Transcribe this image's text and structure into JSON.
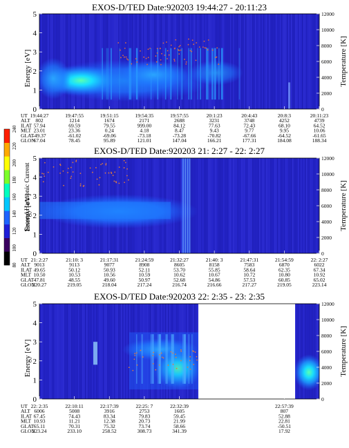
{
  "chart_data": [
    {
      "type": "heatmap",
      "title": "EXOS-D/TED",
      "date_label": "Date:920203",
      "time_range": "19:44:27 - 20:11:23",
      "ylabel": "Energy [eV]",
      "y2label": "Temperature [K]",
      "ylim": [
        0,
        5
      ],
      "y2lim": [
        0,
        12000
      ],
      "yticks": [
        "0",
        "1",
        "2",
        "3",
        "4",
        "5"
      ],
      "y2ticks": [
        "0",
        "2000",
        "4000",
        "6000",
        "8000",
        "10000",
        "12000"
      ],
      "row_labels": [
        "UT",
        "ALT",
        "ILAT",
        "MLT",
        "GLAT",
        "GLON"
      ],
      "columns": [
        {
          "UT": "19:44:27",
          "ALT": "802",
          "ILAT": "57.94",
          "MLT": "23.01",
          "GLAT": "-49.37",
          "GLON": "67.04"
        },
        {
          "UT": "19:47:55",
          "ALT": "1214",
          "ILAT": "69.59",
          "MLT": "23.36",
          "GLAT": "-61.02",
          "GLON": "78.45"
        },
        {
          "UT": "19:51:15",
          "ALT": "1674",
          "ILAT": "79.55",
          "MLT": "0.24",
          "GLAT": "-69.06",
          "GLON": "95.89"
        },
        {
          "UT": "19:54:35",
          "ALT": "2171",
          "ILAT": "999.00",
          "MLT": "4.18",
          "GLAT": "-73.18",
          "GLON": "121.01"
        },
        {
          "UT": "19:57:55",
          "ALT": "2688",
          "ILAT": "84.12",
          "MLT": "8.47",
          "GLAT": "-73.28",
          "GLON": "147.04"
        },
        {
          "UT": "20:1:23",
          "ALT": "3231",
          "ILAT": "77.63",
          "MLT": "9.43",
          "GLAT": "-70.82",
          "GLON": "166.21"
        },
        {
          "UT": "20:4:43",
          "ALT": "3748",
          "ILAT": "72.43",
          "MLT": "9.77",
          "GLAT": "-67.66",
          "GLON": "177.31"
        },
        {
          "UT": "20:8:3",
          "ALT": "4252",
          "ILAT": "68.10",
          "MLT": "9.95",
          "GLAT": "-64.52",
          "GLON": "184.08"
        },
        {
          "UT": "20:11:23",
          "ALT": "4739",
          "ILAT": "64.52",
          "MLT": "10.06",
          "GLAT": "-61.65",
          "GLON": "188.34"
        }
      ]
    },
    {
      "type": "heatmap",
      "title": "EXOS-D/TED",
      "date_label": "Date:920203",
      "time_range": "21: 2:27 - 22: 2:27",
      "ylabel": "Energy [eV]",
      "y2label": "Temperature [K]",
      "ylim": [
        0,
        5
      ],
      "y2lim": [
        0,
        12000
      ],
      "yticks": [
        "0",
        "1",
        "2",
        "3",
        "4",
        "5"
      ],
      "y2ticks": [
        "0",
        "2000",
        "4000",
        "6000",
        "8000",
        "10000",
        "12000"
      ],
      "row_labels": [
        "UT",
        "ALT",
        "ILAT",
        "MLT",
        "GLAT",
        "GLON"
      ],
      "columns": [
        {
          "UT": "21: 2:27",
          "ALT": "9013",
          "ILAT": "49.65",
          "MLT": "10.50",
          "GLAT": "47.81",
          "GLON": "220.27"
        },
        {
          "UT": "21:10: 3",
          "ALT": "9113",
          "ILAT": "50.12",
          "MLT": "10.53",
          "GLAT": "48.55",
          "GLON": "219.05"
        },
        {
          "UT": "21:17:31",
          "ALT": "9077",
          "ILAT": "50.93",
          "MLT": "10.56",
          "GLAT": "49.60",
          "GLON": "218.04"
        },
        {
          "UT": "21:24:59",
          "ALT": "8908",
          "ILAT": "52.11",
          "MLT": "10.59",
          "GLAT": "50.97",
          "GLON": "217.24"
        },
        {
          "UT": "21:32:27",
          "ALT": "8605",
          "ILAT": "53.70",
          "MLT": "10.62",
          "GLAT": "52.68",
          "GLON": "216.74"
        },
        {
          "UT": "21:40: 3",
          "ALT": "8158",
          "ILAT": "55.85",
          "MLT": "10.67",
          "GLAT": "54.86",
          "GLON": "216.66"
        },
        {
          "UT": "21:47:31",
          "ALT": "7583",
          "ILAT": "58.64",
          "MLT": "10.72",
          "GLAT": "57.53",
          "GLON": "217.27"
        },
        {
          "UT": "21:54:59",
          "ALT": "6870",
          "ILAT": "62.35",
          "MLT": "10.80",
          "GLAT": "60.85",
          "GLON": "219.05"
        },
        {
          "UT": "22: 2:27",
          "ALT": "6022",
          "ILAT": "67.34",
          "MLT": "10.92",
          "GLAT": "65.02",
          "GLON": "223.14"
        }
      ]
    },
    {
      "type": "heatmap",
      "title": "EXOS-D/TED",
      "date_label": "Date:920203",
      "time_range": "22: 2:35 - 23: 2:35",
      "ylabel": "Energy [eV]",
      "y2label": "Temperature [K]",
      "ylim": [
        0,
        5
      ],
      "y2lim": [
        0,
        12000
      ],
      "yticks": [
        "0",
        "1",
        "2",
        "3",
        "4",
        "5"
      ],
      "y2ticks": [
        "0",
        "2000",
        "4000",
        "6000",
        "8000",
        "10000",
        "12000"
      ],
      "row_labels": [
        "UT",
        "ALT",
        "ILAT",
        "MLT",
        "GLAT",
        "GLON"
      ],
      "columns": [
        {
          "UT": "22: 2:35",
          "ALT": "6006",
          "ILAT": "67.45",
          "MLT": "10.93",
          "GLAT": "65.11",
          "GLON": "223.24"
        },
        {
          "UT": "22:10:11",
          "ALT": "5008",
          "ILAT": "74.43",
          "MLT": "11.21",
          "GLAT": "70.31",
          "GLON": "233.10"
        },
        {
          "UT": "22:17:39",
          "ALT": "3916",
          "ILAT": "83.34",
          "MLT": "12.38",
          "GLAT": "75.32",
          "GLON": "258.52"
        },
        {
          "UT": "22:25: 7",
          "ALT": "2753",
          "ILAT": "79.83",
          "MLT": "20.73",
          "GLAT": "73.74",
          "GLON": "308.73"
        },
        {
          "UT": "22:32:39",
          "ALT": "1605",
          "ILAT": "59.45",
          "MLT": "21.99",
          "GLAT": "58.66",
          "GLON": "341.39"
        },
        {
          "UT": "",
          "ALT": "",
          "ILAT": "",
          "MLT": "",
          "GLAT": "",
          "GLON": ""
        },
        {
          "UT": "",
          "ALT": "",
          "ILAT": "",
          "MLT": "",
          "GLAT": "",
          "GLON": ""
        },
        {
          "UT": "22:57:39",
          "ALT": "807",
          "ILAT": "52.88",
          "MLT": "22.81",
          "GLAT": "-50.51",
          "GLON": "17.92"
        },
        {
          "UT": "",
          "ALT": "",
          "ILAT": "",
          "MLT": "",
          "GLAT": "",
          "GLON": ""
        }
      ]
    }
  ],
  "colorbar": {
    "label": "Second Harmonic Current",
    "ticks": [
      "80",
      "100",
      "120",
      "140",
      "160",
      "180",
      "200",
      "220",
      "240"
    ],
    "range": [
      80,
      240
    ],
    "colors": [
      "#000000",
      "#3a0060",
      "#1e1ed8",
      "#1e64ff",
      "#00c8ff",
      "#00ffc0",
      "#7cff28",
      "#ffff00",
      "#ffaa00",
      "#ff1e00"
    ]
  }
}
